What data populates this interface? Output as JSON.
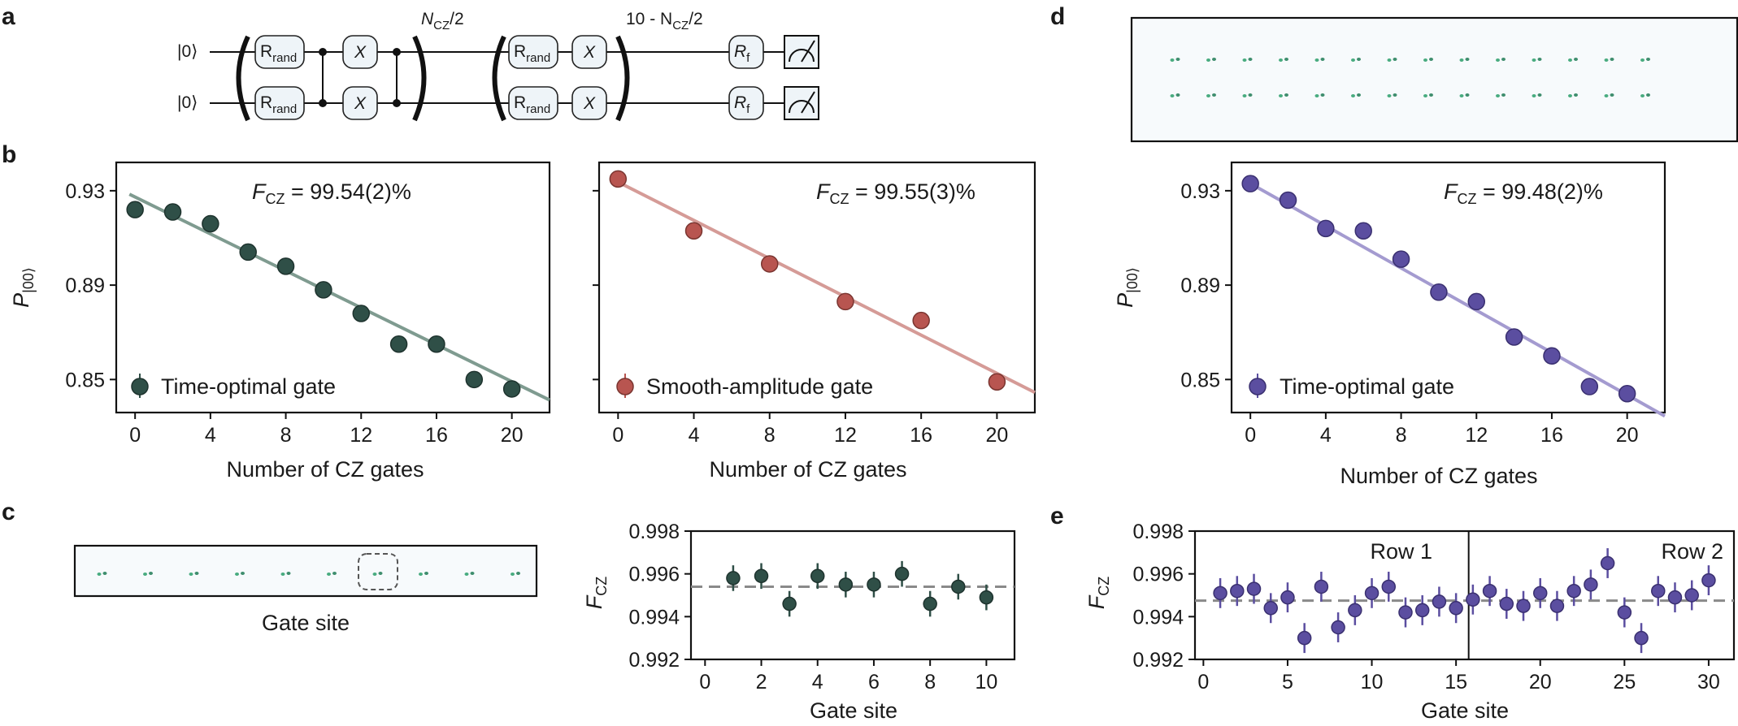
{
  "colors": {
    "green": "#2f4f47",
    "red": "#b85550",
    "purple": "#5b4ea0",
    "green_line": "#7f9b90",
    "red_line": "#d59b97",
    "purple_line": "#a49bd0",
    "dash": "#8a8a8a"
  },
  "panels": {
    "a": "a",
    "b": "b",
    "c": "c",
    "d": "d",
    "e": "e"
  },
  "circuit": {
    "ket": "|0⟩",
    "r": "R",
    "rand": "rand",
    "x": "X",
    "rf": "R",
    "f": "f",
    "ncz_label": "N",
    "ncz_sub": "CZ",
    "ncz_tail": "/2",
    "rep_prefix": "10 - N",
    "rep_sub": "CZ",
    "rep_tail": "/2"
  },
  "chart_data": [
    {
      "id": "b-left",
      "type": "scatter",
      "title": "",
      "xlabel": "Number of CZ gates",
      "ylabel": "P|00⟩",
      "ylabel_main": "P",
      "ylabel_sub": "|00⟩",
      "xlim": [
        -1,
        22
      ],
      "ylim": [
        0.836,
        0.942
      ],
      "xticks": [
        "0",
        "4",
        "8",
        "12",
        "16",
        "20"
      ],
      "yticks": [
        "0.85",
        "0.89",
        "0.93"
      ],
      "fidelity_main": "F",
      "fidelity_sub": "CZ",
      "fidelity_text": " = 99.54(2)%",
      "legend": "Time-optimal gate",
      "x": [
        0,
        2,
        4,
        6,
        8,
        10,
        12,
        14,
        16,
        18,
        20
      ],
      "y": [
        0.922,
        0.921,
        0.916,
        0.904,
        0.898,
        0.888,
        0.878,
        0.865,
        0.865,
        0.85,
        0.846
      ],
      "fit": {
        "x": [
          -0.3,
          22
        ],
        "y": [
          0.9285,
          0.8413
        ]
      }
    },
    {
      "id": "b-right",
      "type": "scatter",
      "xlabel": "Number of CZ gates",
      "xlim": [
        -1,
        22
      ],
      "ylim": [
        0.836,
        0.942
      ],
      "xticks": [
        "0",
        "4",
        "8",
        "12",
        "16",
        "20"
      ],
      "fidelity_main": "F",
      "fidelity_sub": "CZ",
      "fidelity_text": " = 99.55(3)%",
      "legend": "Smooth-amplitude gate",
      "x": [
        0,
        4,
        8,
        12,
        16,
        20
      ],
      "y": [
        0.935,
        0.913,
        0.899,
        0.883,
        0.875,
        0.849
      ],
      "fit": {
        "x": [
          -0.3,
          22
        ],
        "y": [
          0.9349,
          0.8445
        ]
      }
    },
    {
      "id": "d",
      "type": "scatter",
      "xlabel": "Number of CZ gates",
      "ylabel_main": "P",
      "ylabel_sub": "|00⟩",
      "xlim": [
        -1,
        22
      ],
      "ylim": [
        0.836,
        0.942
      ],
      "xticks": [
        "0",
        "4",
        "8",
        "12",
        "16",
        "20"
      ],
      "yticks": [
        "0.85",
        "0.89",
        "0.93"
      ],
      "fidelity_main": "F",
      "fidelity_sub": "CZ",
      "fidelity_text": " = 99.48(2)%",
      "legend": "Time-optimal gate",
      "x": [
        0,
        2,
        4,
        6,
        8,
        10,
        12,
        14,
        16,
        18,
        20
      ],
      "y": [
        0.933,
        0.926,
        0.914,
        0.913,
        0.901,
        0.887,
        0.883,
        0.868,
        0.86,
        0.847,
        0.844
      ],
      "fit": {
        "x": [
          -0.3,
          22
        ],
        "y": [
          0.9344,
          0.8345
        ]
      }
    },
    {
      "id": "c-right",
      "type": "scatter",
      "xlabel": "Gate site",
      "ylabel_main": "F",
      "ylabel_sub": "CZ",
      "xlim": [
        -0.5,
        11
      ],
      "ylim": [
        0.992,
        0.998
      ],
      "xticks": [
        "0",
        "2",
        "4",
        "6",
        "8",
        "10"
      ],
      "yticks": [
        "0.992",
        "0.994",
        "0.996",
        "0.998"
      ],
      "mean": 0.9954,
      "x": [
        1,
        2,
        3,
        4,
        5,
        6,
        7,
        8,
        9,
        10
      ],
      "y": [
        0.9958,
        0.9959,
        0.9946,
        0.9959,
        0.9955,
        0.9955,
        0.996,
        0.9946,
        0.9954,
        0.9949
      ],
      "err": 0.0006
    },
    {
      "id": "e",
      "type": "scatter",
      "xlabel": "Gate site",
      "ylabel_main": "F",
      "ylabel_sub": "CZ",
      "xlim": [
        -0.5,
        31.5
      ],
      "ylim": [
        0.992,
        0.998
      ],
      "xticks": [
        "0",
        "5",
        "10",
        "15",
        "20",
        "25",
        "30"
      ],
      "yticks": [
        "0.992",
        "0.994",
        "0.996",
        "0.998"
      ],
      "mean": 0.99475,
      "divider": 15.75,
      "row1": "Row 1",
      "row2": "Row 2",
      "x": [
        1,
        2,
        3,
        4,
        5,
        6,
        7,
        8,
        9,
        10,
        11,
        12,
        13,
        14,
        15,
        16,
        17,
        18,
        19,
        20,
        21,
        22,
        23,
        24,
        25,
        26,
        27,
        28,
        29,
        30
      ],
      "y": [
        0.9951,
        0.9952,
        0.9953,
        0.9944,
        0.9949,
        0.993,
        0.9954,
        0.9935,
        0.9943,
        0.9951,
        0.9954,
        0.9942,
        0.9943,
        0.9947,
        0.9944,
        0.9948,
        0.9952,
        0.9946,
        0.9945,
        0.9951,
        0.9945,
        0.9952,
        0.9955,
        0.9965,
        0.9942,
        0.993,
        0.9952,
        0.9949,
        0.995,
        0.9957
      ],
      "err": 0.0007
    }
  ],
  "c_left": {
    "xlabel": "Gate site",
    "sites": 10,
    "highlight": 7
  },
  "d_image": {
    "rows": 2,
    "cols": 14
  }
}
